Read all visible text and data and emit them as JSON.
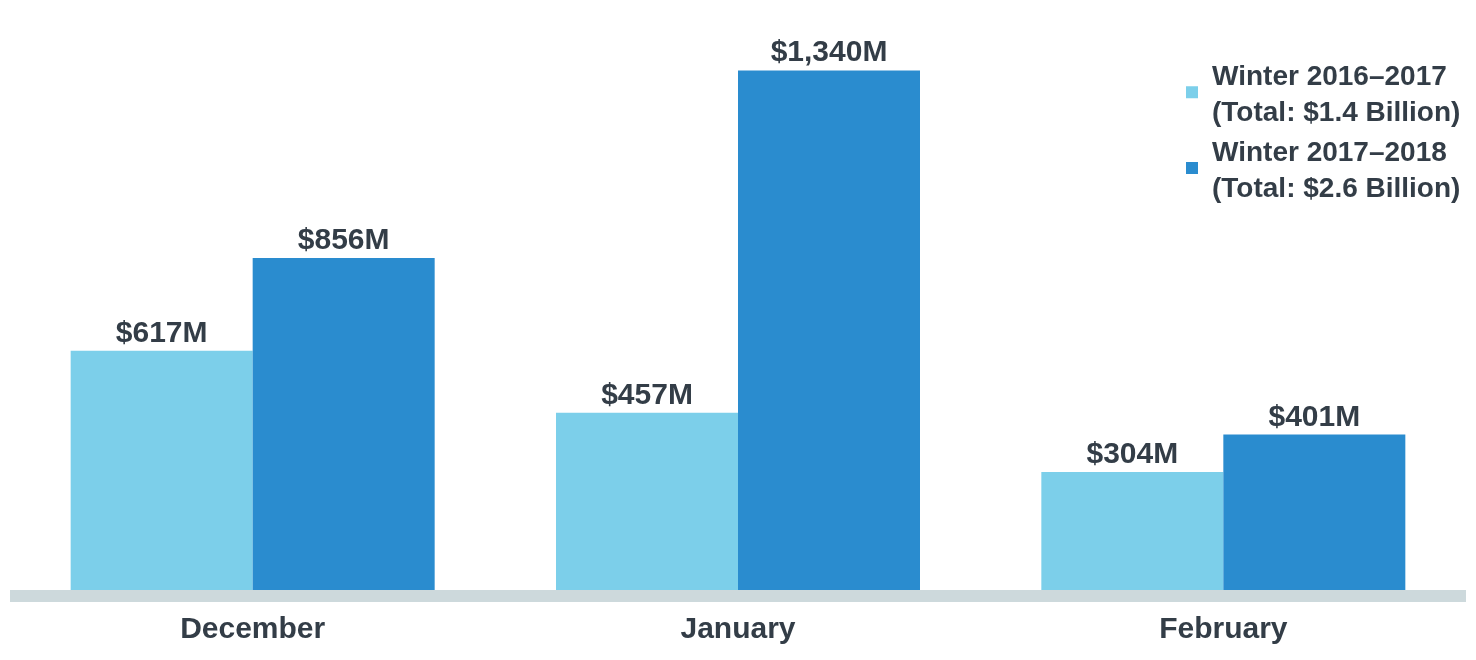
{
  "chart_data": {
    "type": "bar",
    "categories": [
      "December",
      "January",
      "February"
    ],
    "series": [
      {
        "name": "Winter 2016–2017\n(Total: $1.4 Billion)",
        "color": "#7ccfea",
        "values": [
          617,
          457,
          304
        ],
        "value_labels": [
          "$617M",
          "$457M",
          "$304M"
        ]
      },
      {
        "name": "Winter 2017–2018\n(Total: $2.6 Billion)",
        "color": "#2a8ccf",
        "values": [
          856,
          1340,
          401
        ],
        "value_labels": [
          "$856M",
          "$1,340M",
          "$401M"
        ]
      }
    ],
    "tick_labels": "x",
    "legend": "top right"
  }
}
